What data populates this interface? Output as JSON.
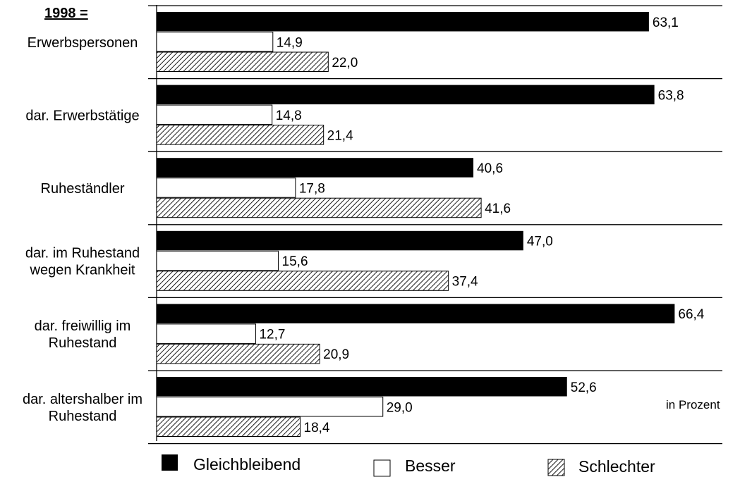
{
  "chart_data": {
    "type": "bar",
    "orientation": "horizontal",
    "heading": "1998 =",
    "unit_label": "in Prozent",
    "categories": [
      [
        "Erwerbspersonen"
      ],
      [
        "dar. Erwerbstätige"
      ],
      [
        "Ruheständler"
      ],
      [
        "dar. im Ruhestand",
        "wegen Krankheit"
      ],
      [
        "dar. freiwillig im",
        "Ruhestand"
      ],
      [
        "dar. altershalber im",
        "Ruhestand"
      ]
    ],
    "series": [
      {
        "name": "Gleichbleibend",
        "style": "solid",
        "values": [
          63.1,
          63.8,
          40.6,
          47.0,
          66.4,
          52.6
        ],
        "labels": [
          "63,1",
          "63,8",
          "40,6",
          "47,0",
          "66,4",
          "52,6"
        ]
      },
      {
        "name": "Besser",
        "style": "white",
        "values": [
          14.9,
          14.8,
          17.8,
          15.6,
          12.7,
          29.0
        ],
        "labels": [
          "14,9",
          "14,8",
          "17,8",
          "15,6",
          "12,7",
          "29,0"
        ]
      },
      {
        "name": "Schlechter",
        "style": "hatched",
        "values": [
          22.0,
          21.4,
          41.6,
          37.4,
          20.9,
          18.4
        ],
        "labels": [
          "22,0",
          "21,4",
          "41,6",
          "37,4",
          "20,9",
          "18,4"
        ]
      }
    ],
    "xlim": [
      0,
      68
    ],
    "legend_position": "bottom",
    "colors": {
      "solid": "#000000",
      "white": "#ffffff",
      "hatch": "#000000"
    }
  }
}
